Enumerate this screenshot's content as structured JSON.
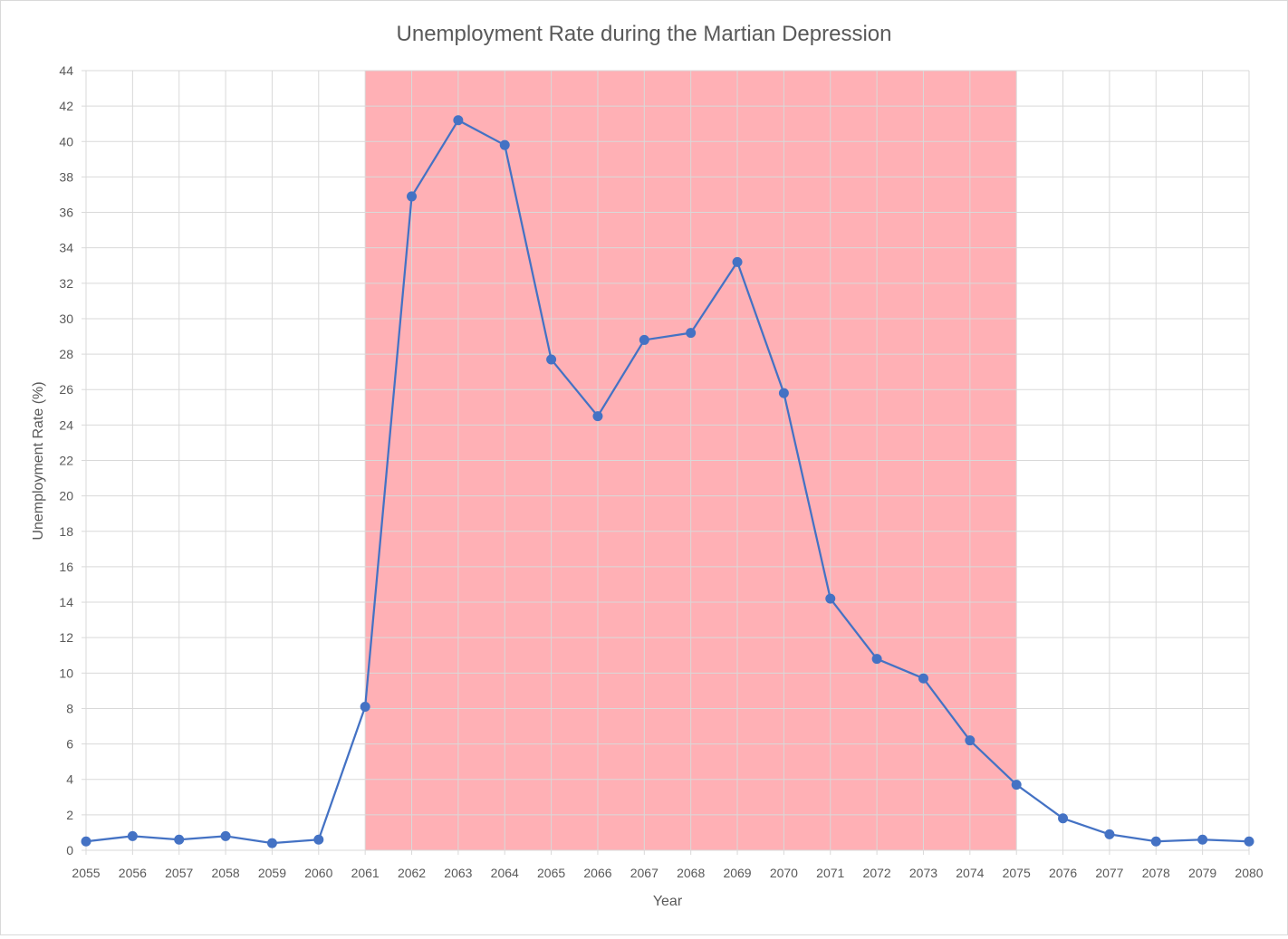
{
  "chart_data": {
    "type": "line",
    "title": "Unemployment  Rate during the Martian Depression",
    "xlabel": "Year",
    "ylabel": "Unemployment Rate (%)",
    "x": [
      2055,
      2056,
      2057,
      2058,
      2059,
      2060,
      2061,
      2062,
      2063,
      2064,
      2065,
      2066,
      2067,
      2068,
      2069,
      2070,
      2071,
      2072,
      2073,
      2074,
      2075,
      2076,
      2077,
      2078,
      2079,
      2080
    ],
    "x_tick_labels": [
      "2055",
      "2056",
      "2057",
      "2058",
      "2059",
      "2060",
      "2061",
      "2062",
      "2063",
      "2064",
      "2065",
      "2066",
      "2067",
      "2068",
      "2069",
      "2070",
      "2071",
      "2072",
      "2073",
      "2074",
      "2075",
      "2076",
      "2077",
      "2078",
      "2079",
      "2080"
    ],
    "series": [
      {
        "values": [
          0.5,
          0.8,
          0.6,
          0.8,
          0.4,
          0.6,
          8.1,
          36.9,
          41.2,
          39.8,
          27.7,
          24.5,
          28.8,
          29.2,
          33.2,
          25.8,
          14.2,
          10.8,
          9.7,
          6.2,
          3.7,
          1.8,
          0.9,
          0.5,
          0.6,
          0.5
        ],
        "color": "#4472c4"
      }
    ],
    "ylim": [
      0,
      44
    ],
    "y_ticks": [
      "0",
      "2",
      "4",
      "6",
      "8",
      "10",
      "12",
      "14",
      "16",
      "18",
      "20",
      "22",
      "24",
      "26",
      "28",
      "30",
      "32",
      "34",
      "36",
      "38",
      "40",
      "42",
      "44"
    ],
    "shaded_region": {
      "x_start": 2061,
      "x_end": 2075,
      "color": "#ffb0b5"
    },
    "grid": true,
    "legend": "none"
  }
}
